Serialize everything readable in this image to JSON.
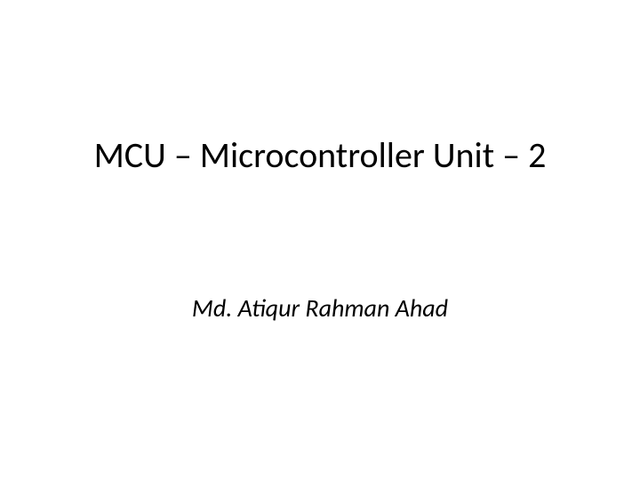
{
  "slide": {
    "title": "MCU – Microcontroller Unit – 2",
    "author": "Md. Atiqur Rahman Ahad",
    "background_color": "#ffffff",
    "title_color": "#000000",
    "title_fontsize": 40,
    "author_color": "#000000",
    "author_fontsize": 28,
    "author_style": "italic"
  }
}
